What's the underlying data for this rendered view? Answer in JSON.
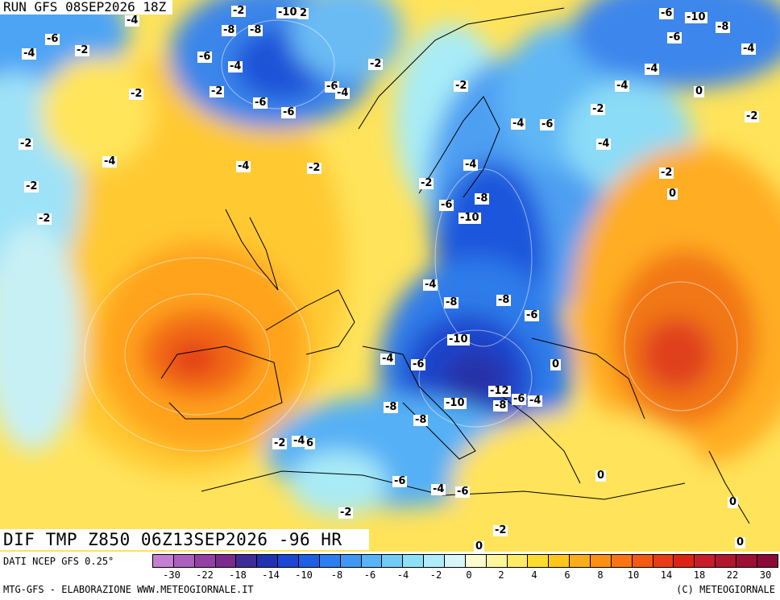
{
  "header": {
    "run_label": "RUN GFS 08SEP2026 18Z"
  },
  "map": {
    "title": "DIF TMP Z850 06Z13SEP2026 -96 HR",
    "labels": [
      "-2",
      "-10",
      "2",
      "-4",
      "-6",
      "-8",
      "-8",
      "-10",
      "-6",
      "-6",
      "-8",
      "-4",
      "-6",
      "-4",
      "-2",
      "-4",
      "-6",
      "-2",
      "-2",
      "-6",
      "-4",
      "-2",
      "-4",
      "0",
      "-6",
      "-8",
      "-2",
      "-4",
      "-6",
      "-2",
      "-4",
      "-4",
      "-2",
      "-2",
      "-4",
      "-2",
      "-2",
      "-6",
      "-8",
      "-10",
      "-2",
      "0",
      "-4",
      "-4",
      "-8",
      "-8",
      "-6",
      "-2",
      "-4",
      "-2",
      "-10",
      "-4",
      "-6",
      "0",
      "-12",
      "-6",
      "-4",
      "-8",
      "-10",
      "-8",
      "-8",
      "-2",
      "-4",
      "6",
      "-6",
      "-4",
      "-6",
      "0",
      "-2",
      "0",
      "-2",
      "0",
      "0"
    ]
  },
  "legend": {
    "source": "DATI NCEP GFS 0.25°",
    "scale_colors": [
      "#c47fd3",
      "#ad5fc0",
      "#9340a5",
      "#7a2b8c",
      "#3f2c97",
      "#2231b2",
      "#1e46d4",
      "#1f5fe6",
      "#2b7ff0",
      "#3f99f4",
      "#58b4f7",
      "#71ccf8",
      "#8ee0f7",
      "#afeef8",
      "#d6f7fa",
      "#fffbd0",
      "#fff59d",
      "#ffeb66",
      "#ffdc2e",
      "#ffc71a",
      "#ffad1a",
      "#ff9014",
      "#fb7414",
      "#f45a14",
      "#ea3c14",
      "#dd2414",
      "#c81c28",
      "#b2162f",
      "#9e1033",
      "#8a0a38"
    ],
    "scale_labels": [
      "-30",
      "-22",
      "-18",
      "-14",
      "-10",
      "-8",
      "-6",
      "-4",
      "-2",
      "0",
      "2",
      "4",
      "6",
      "8",
      "10",
      "14",
      "18",
      "22",
      "30"
    ],
    "credit_left": "MTG-GFS - ELABORAZIONE WWW.METEOGIORNALE.IT",
    "credit_right": "(C) METEOGIORNALE"
  }
}
